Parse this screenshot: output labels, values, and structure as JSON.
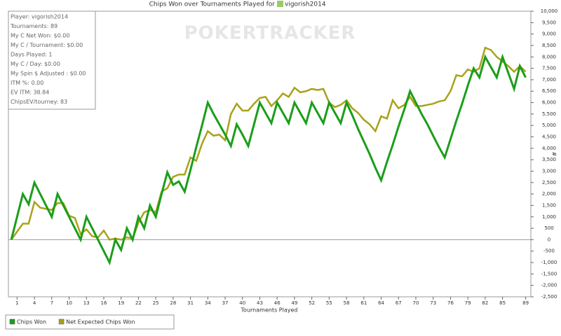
{
  "chart_data": {
    "type": "line",
    "title": "Chips Won over Tournaments Played for",
    "player": "vigorish2014",
    "watermark": "POKERTRACKER",
    "x_label": "Tournaments Played",
    "y_label": "#",
    "stats_box": [
      "Player: vigorish2014",
      "Tournaments: 89",
      "My C Net Won: $0.00",
      "My C / Tournament: $0.00",
      "Days Played: 1",
      "My C / Day: $0.00",
      "My Spin $ Adjusted : $0.00",
      "ITM %: 0.00",
      "EV ITM: 38.84",
      "ChipsEV/tourney: 83"
    ],
    "x": [
      0,
      1,
      2,
      3,
      4,
      5,
      6,
      7,
      8,
      9,
      10,
      11,
      12,
      13,
      14,
      15,
      16,
      17,
      18,
      19,
      20,
      21,
      22,
      23,
      24,
      25,
      26,
      27,
      28,
      29,
      30,
      31,
      32,
      33,
      34,
      35,
      36,
      37,
      38,
      39,
      40,
      41,
      42,
      43,
      44,
      45,
      46,
      47,
      48,
      49,
      50,
      51,
      52,
      53,
      54,
      55,
      56,
      57,
      58,
      59,
      60,
      61,
      62,
      63,
      64,
      65,
      66,
      67,
      68,
      69,
      70,
      71,
      72,
      73,
      74,
      75,
      76,
      77,
      78,
      79,
      80,
      81,
      82,
      83,
      84,
      85,
      86,
      87,
      88,
      89
    ],
    "series": [
      {
        "name": "Chips Won",
        "color": "#1a9e1a",
        "values": [
          0,
          1000,
          2000,
          1550,
          2500,
          2000,
          1500,
          1000,
          2000,
          1500,
          1000,
          500,
          0,
          1000,
          500,
          0,
          -500,
          -1000,
          0,
          -450,
          500,
          0,
          1000,
          500,
          1500,
          1000,
          2000,
          2950,
          2400,
          2550,
          2100,
          3050,
          4050,
          5000,
          6000,
          5500,
          5050,
          4600,
          4100,
          5050,
          4600,
          4100,
          5050,
          6000,
          5550,
          5100,
          6000,
          5550,
          5100,
          6000,
          5550,
          5100,
          6000,
          5550,
          5100,
          6000,
          5550,
          5100,
          6000,
          5450,
          4850,
          4300,
          3750,
          3150,
          2600,
          3400,
          4150,
          4950,
          5700,
          6500,
          6000,
          5500,
          5050,
          4550,
          4050,
          3600,
          4400,
          5200,
          5950,
          6750,
          7500,
          7100,
          8000,
          7550,
          7100,
          8000,
          7300,
          6600,
          7600,
          7100
        ]
      },
      {
        "name": "Net Expected Chips Won",
        "color": "#a8a21a",
        "values": [
          0,
          350,
          700,
          700,
          1650,
          1400,
          1350,
          1300,
          1600,
          1600,
          1050,
          950,
          250,
          450,
          150,
          100,
          400,
          0,
          50,
          0,
          100,
          50,
          750,
          1200,
          1300,
          1200,
          2100,
          2250,
          2750,
          2850,
          2850,
          3600,
          3450,
          4200,
          4750,
          4550,
          4600,
          4350,
          5500,
          5950,
          5650,
          5650,
          5950,
          6200,
          6250,
          5850,
          6100,
          6400,
          6250,
          6650,
          6450,
          6500,
          6600,
          6550,
          6600,
          6000,
          5800,
          5900,
          6100,
          5750,
          5550,
          5250,
          5050,
          4750,
          5400,
          5300,
          6100,
          5750,
          5900,
          6250,
          5850,
          5850,
          5900,
          5950,
          6050,
          6100,
          6500,
          7200,
          7150,
          7450,
          7350,
          7500,
          8400,
          8300,
          8000,
          7800,
          7600,
          7350,
          7600,
          7350
        ]
      }
    ],
    "xlim": [
      -0.5,
      89.9
    ],
    "xticks": [
      1,
      4,
      7,
      10,
      13,
      16,
      19,
      22,
      25,
      28,
      31,
      34,
      37,
      40,
      43,
      46,
      49,
      52,
      55,
      58,
      61,
      64,
      67,
      70,
      73,
      76,
      79,
      82,
      85,
      89
    ],
    "ylim": [
      -2500,
      10000
    ],
    "yticks": [
      {
        "value": -2500,
        "label": "-2,500"
      },
      {
        "value": -2000,
        "label": "-2,000"
      },
      {
        "value": -1500,
        "label": "-1,500"
      },
      {
        "value": -1000,
        "label": "-1,000"
      },
      -500,
      0,
      500,
      {
        "value": 1000,
        "label": "1,000"
      },
      {
        "value": 1500,
        "label": "1,500"
      },
      {
        "value": 2000,
        "label": "2,000"
      },
      {
        "value": 2500,
        "label": "2,500"
      },
      {
        "value": 3000,
        "label": "3,000"
      },
      {
        "value": 3500,
        "label": "3,500"
      },
      {
        "value": 4000,
        "label": "4,000"
      },
      {
        "value": 4500,
        "label": "4,500"
      },
      {
        "value": 5000,
        "label": "5,000"
      },
      {
        "value": 5500,
        "label": "5,500"
      },
      {
        "value": 6000,
        "label": "6,000"
      },
      {
        "value": 6500,
        "label": "6,500"
      },
      {
        "value": 7000,
        "label": "7,000"
      },
      {
        "value": 7500,
        "label": "7,500"
      },
      {
        "value": 8000,
        "label": "8,000"
      },
      {
        "value": 8500,
        "label": "8,500"
      },
      {
        "value": 9000,
        "label": "9,000"
      },
      {
        "value": 9500,
        "label": "9,500"
      },
      {
        "value": 10000,
        "label": "10,000"
      }
    ],
    "grid": false
  }
}
